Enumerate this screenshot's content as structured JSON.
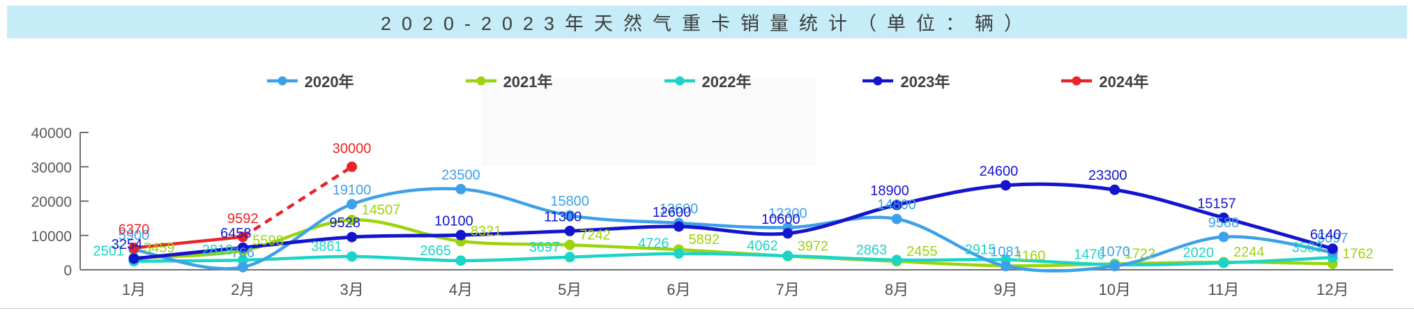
{
  "chart_data": {
    "type": "line",
    "title": "2020-2023年天然气重卡销量统计（单位：辆）",
    "categories": [
      "1月",
      "2月",
      "3月",
      "4月",
      "5月",
      "6月",
      "7月",
      "8月",
      "9月",
      "10月",
      "11月",
      "12月"
    ],
    "series": [
      {
        "name": "2020年",
        "color": "#3da0e8",
        "style": "solid",
        "values": [
          5900,
          766,
          19100,
          23500,
          15800,
          13600,
          12300,
          14800,
          1081,
          1070,
          9588,
          5097
        ]
      },
      {
        "name": "2021年",
        "color": "#9bd40c",
        "style": "solid",
        "values": [
          3459,
          5598,
          14507,
          8321,
          7242,
          5892,
          3972,
          2455,
          1160,
          1722,
          2244,
          1762
        ]
      },
      {
        "name": "2022年",
        "color": "#1bd4c5",
        "style": "solid",
        "values": [
          2501,
          2819,
          3861,
          2665,
          3697,
          4726,
          4062,
          2863,
          2915,
          1476,
          2020,
          3583
        ]
      },
      {
        "name": "2023年",
        "color": "#1414cd",
        "style": "solid",
        "values": [
          3254,
          6458,
          9528,
          10100,
          11300,
          12600,
          10600,
          18900,
          24600,
          23300,
          15157,
          6140
        ]
      },
      {
        "name": "2024年",
        "color": "#ea2326",
        "style": "solid_then_dashed",
        "dash_from": 1,
        "values": [
          6370,
          9592,
          30000,
          null,
          null,
          null,
          null,
          null,
          null,
          null,
          null,
          null
        ]
      }
    ],
    "ylim": [
      0,
      40000
    ],
    "yticks": [
      0,
      10000,
      20000,
      30000,
      40000
    ],
    "legend_position": "top",
    "grid": false,
    "data_labels": true
  },
  "colors": {
    "banner_bg": "#c6ecf7",
    "title_text": "#3b3b3b",
    "legend_text": "#3f3f3f",
    "axis_line": "#6e6e6e",
    "axis_text": "#595959"
  }
}
